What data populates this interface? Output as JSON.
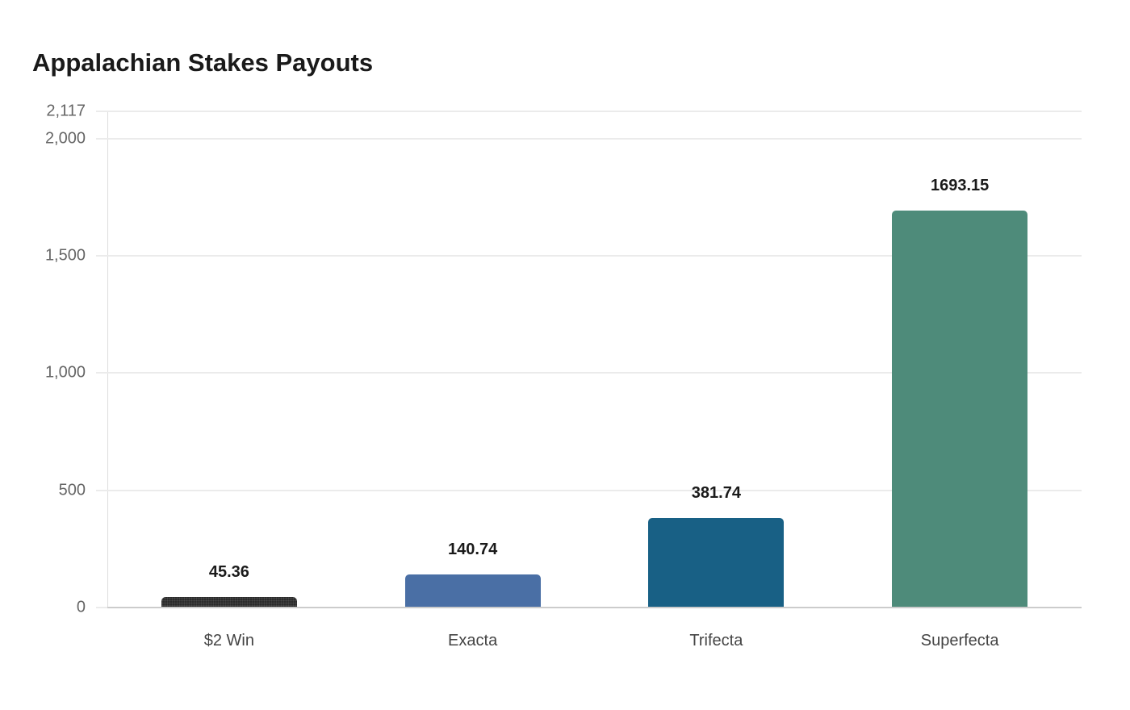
{
  "chart_data": {
    "type": "bar",
    "title": "Appalachian Stakes Payouts",
    "xlabel": "",
    "ylabel": "",
    "categories": [
      "$2 Win",
      "Exacta",
      "Trifecta",
      "Superfecta"
    ],
    "values": [
      45.36,
      140.74,
      381.74,
      1693.15
    ],
    "value_labels": [
      "45.36",
      "140.74",
      "381.74",
      "1693.15"
    ],
    "colors": [
      "#2b2b2b",
      "#4a6fa5",
      "#186085",
      "#4e8b7a"
    ],
    "ylim": [
      0,
      2117
    ],
    "yticks": [
      0,
      500,
      1000,
      1500,
      2000,
      2117
    ],
    "ytick_labels": [
      "0",
      "500",
      "1,000",
      "1,500",
      "2,000",
      "2,117"
    ],
    "grid": true,
    "legend": null
  },
  "header": {
    "title": "Appalachian Stakes Payouts"
  }
}
